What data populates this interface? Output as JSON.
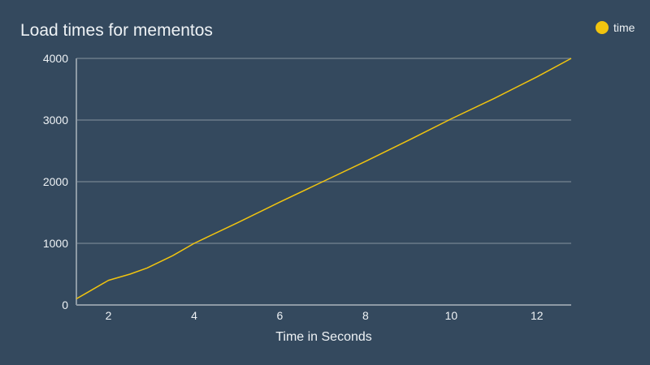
{
  "chart_data": {
    "type": "line",
    "title": "Load times for mementos",
    "xlabel": "Time in Seconds",
    "ylabel": "",
    "xlim": [
      1.25,
      12.8
    ],
    "ylim": [
      0,
      4000
    ],
    "x_ticks": [
      2,
      4,
      6,
      8,
      10,
      12
    ],
    "y_ticks": [
      0,
      1000,
      2000,
      3000,
      4000
    ],
    "grid": true,
    "legend_position": "top-right",
    "series": [
      {
        "name": "time",
        "color": "#f1c40f",
        "x": [
          1.25,
          1.5,
          2,
          2.5,
          2.9,
          3.5,
          4,
          5,
          6,
          7,
          8,
          9,
          10,
          11,
          12,
          12.8
        ],
        "y": [
          100,
          200,
          400,
          500,
          600,
          800,
          1000,
          1330,
          1670,
          2000,
          2330,
          2670,
          3020,
          3350,
          3700,
          4000
        ]
      }
    ]
  }
}
